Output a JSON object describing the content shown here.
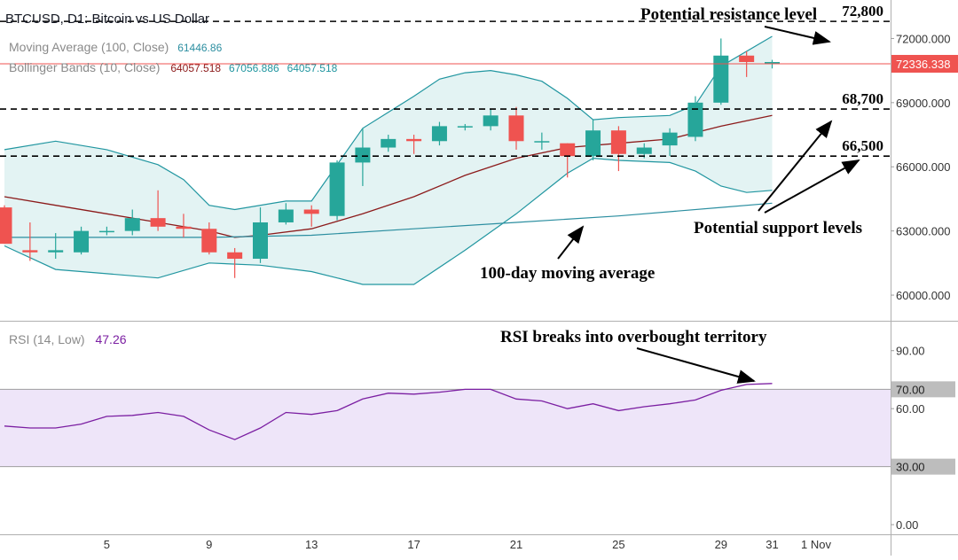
{
  "chart_data": [
    {
      "type": "candlestick",
      "symbol_title": "BTCUSD, D1: Bitcoin vs US Dollar",
      "x_tick_labels": [
        "5",
        "9",
        "13",
        "17",
        "21",
        "25",
        "29",
        "31",
        "1 Nov"
      ],
      "x_tick_days": [
        5,
        9,
        13,
        17,
        21,
        25,
        29,
        31,
        32
      ],
      "y_ticks": [
        "72000.000",
        "69000.000",
        "66000.000",
        "63000.000",
        "60000.000"
      ],
      "ylim": [
        58800,
        73800
      ],
      "price_label": "72336.338",
      "candles": [
        {
          "day": 1,
          "open": 64100,
          "high": 64200,
          "low": 62400,
          "close": 62400
        },
        {
          "day": 2,
          "open": 62100,
          "high": 63400,
          "low": 61600,
          "close": 62000
        },
        {
          "day": 3,
          "open": 62000,
          "high": 62900,
          "low": 61700,
          "close": 62100
        },
        {
          "day": 4,
          "open": 62000,
          "high": 63200,
          "low": 61900,
          "close": 63000
        },
        {
          "day": 5,
          "open": 63000,
          "high": 63200,
          "low": 62800,
          "close": 63000
        },
        {
          "day": 6,
          "open": 63000,
          "high": 64000,
          "low": 62800,
          "close": 63600
        },
        {
          "day": 7,
          "open": 63600,
          "high": 64900,
          "low": 63000,
          "close": 63200
        },
        {
          "day": 8,
          "open": 63200,
          "high": 63800,
          "low": 62700,
          "close": 63100
        },
        {
          "day": 9,
          "open": 63100,
          "high": 63400,
          "low": 61900,
          "close": 62000
        },
        {
          "day": 10,
          "open": 62000,
          "high": 62200,
          "low": 60800,
          "close": 61700
        },
        {
          "day": 11,
          "open": 61700,
          "high": 64100,
          "low": 61500,
          "close": 63400
        },
        {
          "day": 12,
          "open": 63400,
          "high": 64300,
          "low": 63300,
          "close": 64000
        },
        {
          "day": 13,
          "open": 64000,
          "high": 64200,
          "low": 63200,
          "close": 63800
        },
        {
          "day": 14,
          "open": 63700,
          "high": 66300,
          "low": 63500,
          "close": 66200
        },
        {
          "day": 15,
          "open": 66200,
          "high": 67800,
          "low": 65100,
          "close": 66900
        },
        {
          "day": 16,
          "open": 66900,
          "high": 67500,
          "low": 66700,
          "close": 67300
        },
        {
          "day": 17,
          "open": 67300,
          "high": 67500,
          "low": 66600,
          "close": 67200
        },
        {
          "day": 18,
          "open": 67200,
          "high": 68100,
          "low": 67000,
          "close": 67900
        },
        {
          "day": 19,
          "open": 67900,
          "high": 68000,
          "low": 67700,
          "close": 67900
        },
        {
          "day": 20,
          "open": 67900,
          "high": 68700,
          "low": 67700,
          "close": 68400
        },
        {
          "day": 21,
          "open": 68400,
          "high": 68800,
          "low": 66800,
          "close": 67200
        },
        {
          "day": 22,
          "open": 67200,
          "high": 67600,
          "low": 66800,
          "close": 67200
        },
        {
          "day": 23,
          "open": 67100,
          "high": 67100,
          "low": 65500,
          "close": 66500
        },
        {
          "day": 24,
          "open": 66500,
          "high": 68200,
          "low": 66300,
          "close": 67700
        },
        {
          "day": 25,
          "open": 67700,
          "high": 67900,
          "low": 65800,
          "close": 66600
        },
        {
          "day": 26,
          "open": 66600,
          "high": 67100,
          "low": 66400,
          "close": 66900
        },
        {
          "day": 27,
          "open": 67000,
          "high": 67800,
          "low": 66500,
          "close": 67600
        },
        {
          "day": 28,
          "open": 67400,
          "high": 69300,
          "low": 67200,
          "close": 69000
        },
        {
          "day": 29,
          "open": 69000,
          "high": 72000,
          "low": 68900,
          "close": 71200
        },
        {
          "day": 30,
          "open": 71200,
          "high": 71400,
          "low": 70200,
          "close": 70900
        },
        {
          "day": 31,
          "open": 70900,
          "high": 71000,
          "low": 70600,
          "close": 70900
        }
      ],
      "indicators": {
        "ma_label": "Moving Average (100, Close)",
        "ma_value": "61446.86",
        "bb_label": "Bollinger Bands (10, Close)",
        "bb_values": [
          "64057.518",
          "67056.886",
          "64057.518"
        ],
        "ma100": [
          {
            "day": 1,
            "value": 62700
          },
          {
            "day": 5,
            "value": 62700
          },
          {
            "day": 9,
            "value": 62700
          },
          {
            "day": 13,
            "value": 62800
          },
          {
            "day": 17,
            "value": 63100
          },
          {
            "day": 21,
            "value": 63400
          },
          {
            "day": 25,
            "value": 63700
          },
          {
            "day": 29,
            "value": 64100
          },
          {
            "day": 31,
            "value": 64300
          }
        ],
        "bb_middle": [
          {
            "day": 1,
            "value": 64600
          },
          {
            "day": 3,
            "value": 64200
          },
          {
            "day": 5,
            "value": 63800
          },
          {
            "day": 7,
            "value": 63400
          },
          {
            "day": 9,
            "value": 63000
          },
          {
            "day": 10,
            "value": 62700
          },
          {
            "day": 11,
            "value": 62800
          },
          {
            "day": 13,
            "value": 63100
          },
          {
            "day": 15,
            "value": 63800
          },
          {
            "day": 17,
            "value": 64600
          },
          {
            "day": 19,
            "value": 65600
          },
          {
            "day": 21,
            "value": 66400
          },
          {
            "day": 23,
            "value": 66900
          },
          {
            "day": 25,
            "value": 67100
          },
          {
            "day": 27,
            "value": 67300
          },
          {
            "day": 29,
            "value": 67900
          },
          {
            "day": 31,
            "value": 68400
          }
        ],
        "bb_upper": [
          {
            "day": 1,
            "value": 66800
          },
          {
            "day": 3,
            "value": 67200
          },
          {
            "day": 5,
            "value": 66800
          },
          {
            "day": 7,
            "value": 66100
          },
          {
            "day": 8,
            "value": 65400
          },
          {
            "day": 9,
            "value": 64200
          },
          {
            "day": 10,
            "value": 64000
          },
          {
            "day": 12,
            "value": 64400
          },
          {
            "day": 13,
            "value": 64400
          },
          {
            "day": 15,
            "value": 67800
          },
          {
            "day": 17,
            "value": 69300
          },
          {
            "day": 18,
            "value": 70100
          },
          {
            "day": 19,
            "value": 70400
          },
          {
            "day": 20,
            "value": 70500
          },
          {
            "day": 21,
            "value": 70300
          },
          {
            "day": 22,
            "value": 70000
          },
          {
            "day": 23,
            "value": 69200
          },
          {
            "day": 24,
            "value": 68200
          },
          {
            "day": 25,
            "value": 68300
          },
          {
            "day": 27,
            "value": 68400
          },
          {
            "day": 28,
            "value": 68900
          },
          {
            "day": 29,
            "value": 70700
          },
          {
            "day": 31,
            "value": 72100
          }
        ],
        "bb_lower": [
          {
            "day": 1,
            "value": 62300
          },
          {
            "day": 3,
            "value": 61200
          },
          {
            "day": 5,
            "value": 61000
          },
          {
            "day": 7,
            "value": 60800
          },
          {
            "day": 9,
            "value": 61500
          },
          {
            "day": 11,
            "value": 61400
          },
          {
            "day": 13,
            "value": 61100
          },
          {
            "day": 14,
            "value": 60800
          },
          {
            "day": 15,
            "value": 60500
          },
          {
            "day": 17,
            "value": 60500
          },
          {
            "day": 19,
            "value": 62100
          },
          {
            "day": 21,
            "value": 63800
          },
          {
            "day": 23,
            "value": 65700
          },
          {
            "day": 24,
            "value": 66400
          },
          {
            "day": 25,
            "value": 66300
          },
          {
            "day": 27,
            "value": 66200
          },
          {
            "day": 28,
            "value": 65800
          },
          {
            "day": 29,
            "value": 65100
          },
          {
            "day": 30,
            "value": 64800
          },
          {
            "day": 31,
            "value": 64900
          }
        ]
      },
      "levels": [
        {
          "label": "72,800",
          "value": 72800
        },
        {
          "label": "68,700",
          "value": 68700
        },
        {
          "label": "66,500",
          "value": 66500
        }
      ],
      "annotations": {
        "resistance": "Potential resistance level",
        "support": "Potential support levels",
        "ma": "100-day moving average"
      },
      "colors": {
        "up": "#26a69a",
        "down": "#ef5350",
        "bb": "#2196a0",
        "bb_fill": "#e3f3f3",
        "ma100": "#2b8ea0",
        "bb_mid": "#8c1b1b",
        "price_line": "#ef5350",
        "level": "#000000"
      }
    },
    {
      "type": "line",
      "title": "RSI (14, Low)",
      "value_label": "47.26",
      "y_ticks": [
        "90.00",
        "60.00",
        "0.00"
      ],
      "ylim": [
        -5,
        105
      ],
      "band": [
        30,
        70
      ],
      "band_labels": [
        "70.00",
        "30.00"
      ],
      "series": [
        {
          "values": [
            {
              "day": 1,
              "value": 51
            },
            {
              "day": 2,
              "value": 50
            },
            {
              "day": 3,
              "value": 50
            },
            {
              "day": 4,
              "value": 52
            },
            {
              "day": 5,
              "value": 56
            },
            {
              "day": 6,
              "value": 56.5
            },
            {
              "day": 7,
              "value": 58
            },
            {
              "day": 8,
              "value": 56
            },
            {
              "day": 9,
              "value": 49
            },
            {
              "day": 10,
              "value": 44
            },
            {
              "day": 11,
              "value": 50
            },
            {
              "day": 12,
              "value": 58
            },
            {
              "day": 13,
              "value": 57
            },
            {
              "day": 14,
              "value": 59
            },
            {
              "day": 15,
              "value": 65
            },
            {
              "day": 16,
              "value": 68
            },
            {
              "day": 17,
              "value": 67.5
            },
            {
              "day": 18,
              "value": 68.5
            },
            {
              "day": 19,
              "value": 70
            },
            {
              "day": 20,
              "value": 70
            },
            {
              "day": 21,
              "value": 65
            },
            {
              "day": 22,
              "value": 64
            },
            {
              "day": 23,
              "value": 60
            },
            {
              "day": 24,
              "value": 62.5
            },
            {
              "day": 25,
              "value": 59
            },
            {
              "day": 26,
              "value": 61
            },
            {
              "day": 27,
              "value": 62.5
            },
            {
              "day": 28,
              "value": 64.5
            },
            {
              "day": 29,
              "value": 69.5
            },
            {
              "day": 30,
              "value": 72.5
            },
            {
              "day": 31,
              "value": 73
            }
          ]
        }
      ],
      "annotations": {
        "overbought": "RSI breaks into overbought territory"
      },
      "colors": {
        "line": "#7b1fa2",
        "band_fill": "#eee5f9",
        "band_edge": "#9e9e9e",
        "label_bg": "#bdbdbd"
      }
    }
  ]
}
